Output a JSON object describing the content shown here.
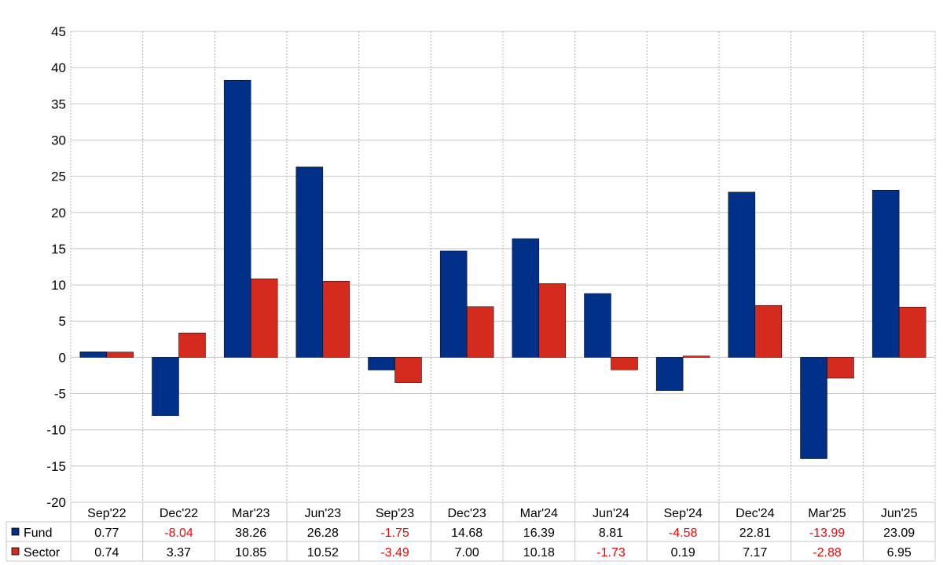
{
  "chart_data": {
    "type": "bar",
    "categories": [
      "Sep'22",
      "Dec'22",
      "Mar'23",
      "Jun'23",
      "Sep'23",
      "Dec'23",
      "Mar'24",
      "Jun'24",
      "Sep'24",
      "Dec'24",
      "Mar'25",
      "Jun'25"
    ],
    "series": [
      {
        "name": "Fund",
        "color": "#003087",
        "values": [
          0.77,
          -8.04,
          38.26,
          26.28,
          -1.75,
          14.68,
          16.39,
          8.81,
          -4.58,
          22.81,
          -13.99,
          23.09
        ]
      },
      {
        "name": "Sector",
        "color": "#d52b1e",
        "values": [
          0.74,
          3.37,
          10.85,
          10.52,
          -3.49,
          7.0,
          10.18,
          -1.73,
          0.19,
          7.17,
          -2.88,
          6.95
        ]
      }
    ],
    "table_values": {
      "Fund": [
        "0.77",
        "-8.04",
        "38.26",
        "26.28",
        "-1.75",
        "14.68",
        "16.39",
        "8.81",
        "-4.58",
        "22.81",
        "-13.99",
        "23.09"
      ],
      "Sector": [
        "0.74",
        "3.37",
        "10.85",
        "10.52",
        "-3.49",
        "7.00",
        "10.18",
        "-1.73",
        "0.19",
        "7.17",
        "-2.88",
        "6.95"
      ]
    },
    "ylim": [
      -20,
      45
    ],
    "yticks": [
      "45",
      "40",
      "35",
      "30",
      "25",
      "20",
      "15",
      "10",
      "5",
      "0",
      "-5",
      "-10",
      "-15",
      "-20"
    ],
    "negative_text_color": "#ff0000",
    "grid": true,
    "legend": "data-table",
    "title": "",
    "xlabel": "",
    "ylabel": ""
  }
}
